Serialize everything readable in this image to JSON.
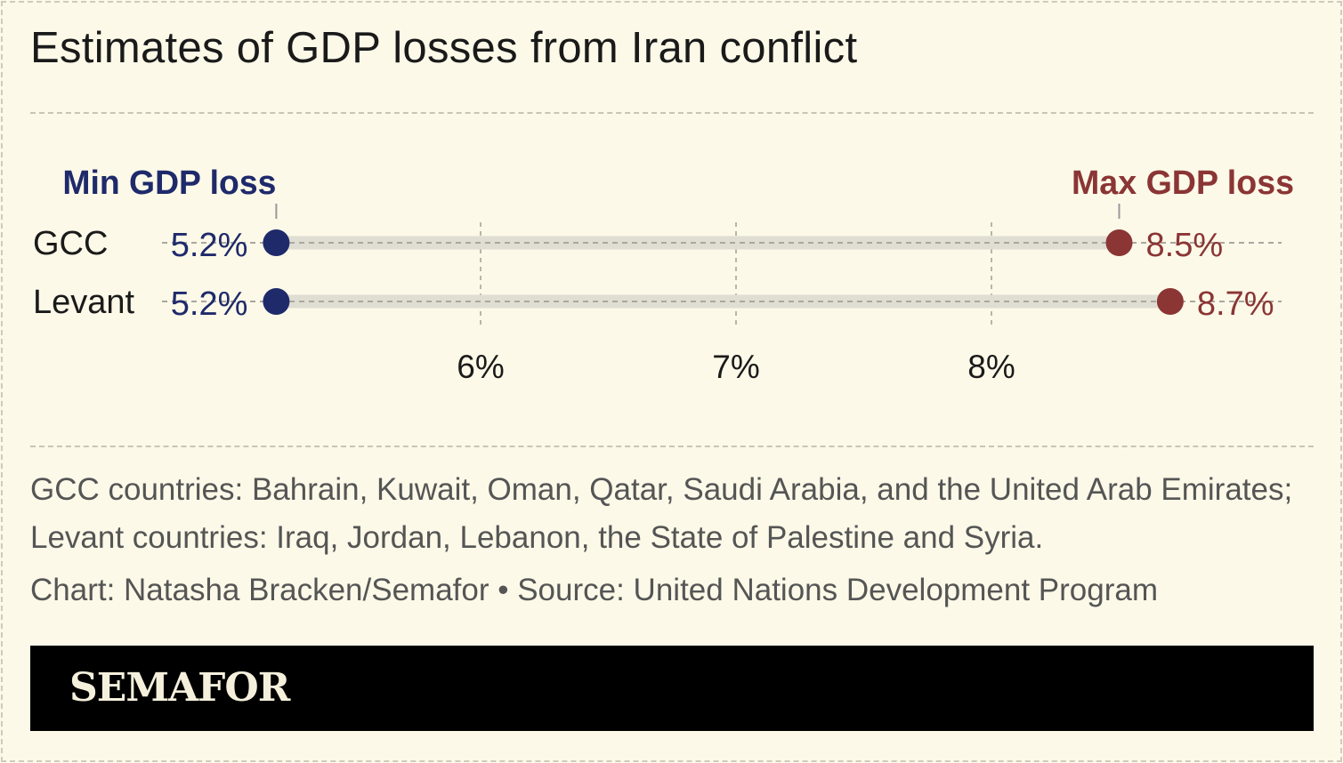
{
  "title": "Estimates of GDP losses from Iran conflict",
  "chart_data": {
    "type": "dumbbell",
    "categories": [
      "GCC",
      "Levant"
    ],
    "series": [
      {
        "name": "Min GDP loss",
        "values": [
          5.2,
          5.2
        ],
        "color": "#1f2a6b"
      },
      {
        "name": "Max GDP loss",
        "values": [
          8.5,
          8.7
        ],
        "color": "#8b3535"
      }
    ],
    "data_labels": {
      "min": [
        "5.2%",
        "5.2%"
      ],
      "max": [
        "8.5%",
        "8.7%"
      ]
    },
    "x_ticks": [
      6,
      7,
      8
    ],
    "x_tick_labels": [
      "6%",
      "7%",
      "8%"
    ],
    "grid": "vertical dashed"
  },
  "notes": "GCC countries: Bahrain, Kuwait, Oman, Qatar, Saudi Arabia, and the United Arab Emirates; Levant countries: Iraq, Jordan, Lebanon, the State of Palestine and Syria.",
  "credit": "Chart: Natasha Bracken/Semafor • Source: United Nations Development Program",
  "logo": "SEMAFOR"
}
